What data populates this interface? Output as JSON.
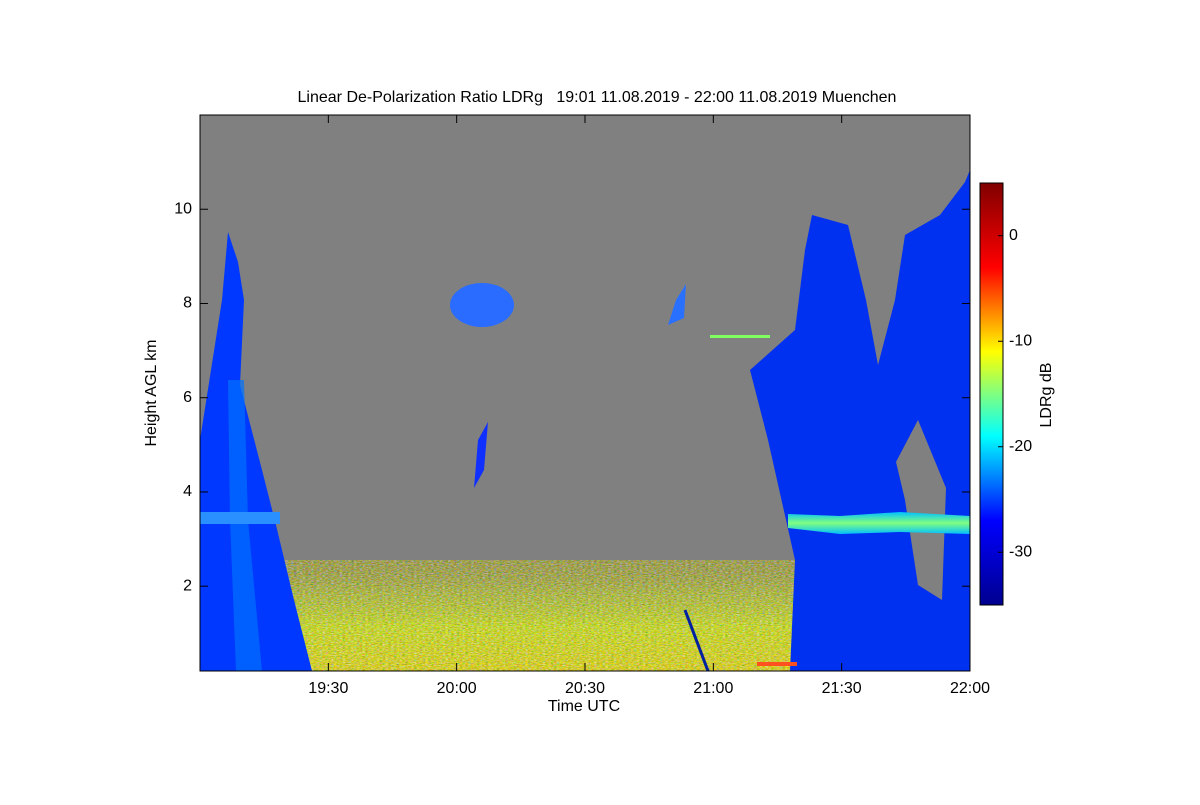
{
  "chart_data": {
    "type": "heatmap",
    "title": "Linear De-Polarization Ratio LDRg   19:01 11.08.2019 - 22:00 11.08.2019 Muenchen",
    "x_label": "Time UTC",
    "y_label": "Height AGL km",
    "xlim": [
      "19:00",
      "22:00"
    ],
    "xticks": [
      "19:30",
      "20:00",
      "20:30",
      "21:00",
      "21:30",
      "22:00"
    ],
    "ylim": [
      0.2,
      12
    ],
    "yticks": [
      2,
      4,
      6,
      8,
      10
    ],
    "background_color": "#808080",
    "colorbar": {
      "label": "LDRg dB",
      "lim": [
        -35,
        5
      ],
      "ticks": [
        0,
        -10,
        -20,
        -30
      ],
      "colormap": "jet"
    }
  }
}
